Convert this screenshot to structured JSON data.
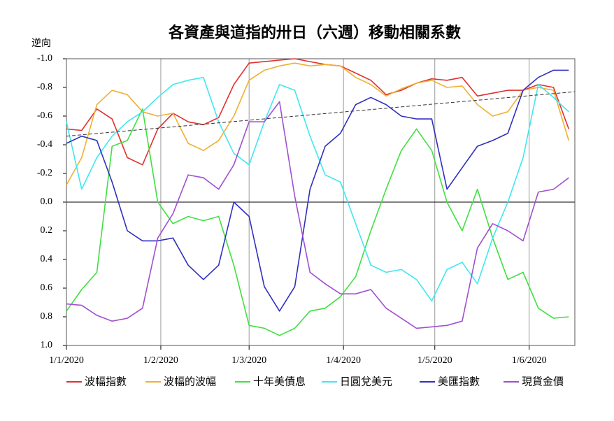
{
  "chart_data": {
    "type": "line",
    "title": "各資產與道指的卅日（六週）移動相關系數",
    "y_axis_label": "逆向",
    "y_inverted": true,
    "x": [
      "2020-01-01",
      "2020-01-06",
      "2020-01-11",
      "2020-01-16",
      "2020-01-21",
      "2020-01-26",
      "2020-01-31",
      "2020-02-05",
      "2020-02-10",
      "2020-02-15",
      "2020-02-20",
      "2020-02-25",
      "2020-03-01",
      "2020-03-06",
      "2020-03-11",
      "2020-03-16",
      "2020-03-21",
      "2020-03-26",
      "2020-03-31",
      "2020-04-05",
      "2020-04-10",
      "2020-04-15",
      "2020-04-20",
      "2020-04-25",
      "2020-04-30",
      "2020-05-05",
      "2020-05-10",
      "2020-05-15",
      "2020-05-20",
      "2020-05-25",
      "2020-05-30",
      "2020-06-04",
      "2020-06-09",
      "2020-06-14"
    ],
    "series": [
      {
        "name": "波幅指數",
        "color": "#e03030",
        "values": [
          -0.51,
          -0.5,
          -0.65,
          -0.58,
          -0.31,
          -0.26,
          -0.51,
          -0.62,
          -0.56,
          -0.54,
          -0.59,
          -0.82,
          -0.97,
          -0.98,
          -0.99,
          -1.0,
          -0.98,
          -0.96,
          -0.95,
          -0.9,
          -0.85,
          -0.75,
          -0.78,
          -0.83,
          -0.86,
          -0.85,
          -0.87,
          -0.74,
          -0.76,
          -0.78,
          -0.78,
          -0.82,
          -0.8,
          -0.51
        ]
      },
      {
        "name": "波幅的波幅",
        "color": "#f0b030",
        "values": [
          -0.12,
          -0.31,
          -0.68,
          -0.78,
          -0.75,
          -0.63,
          -0.6,
          -0.62,
          -0.41,
          -0.36,
          -0.43,
          -0.6,
          -0.85,
          -0.92,
          -0.95,
          -0.97,
          -0.95,
          -0.96,
          -0.95,
          -0.87,
          -0.82,
          -0.74,
          -0.79,
          -0.83,
          -0.85,
          -0.8,
          -0.81,
          -0.68,
          -0.6,
          -0.63,
          -0.78,
          -0.8,
          -0.78,
          -0.43
        ]
      },
      {
        "name": "十年美債息",
        "color": "#40e040",
        "values": [
          0.76,
          0.61,
          0.49,
          -0.39,
          -0.43,
          -0.65,
          0.0,
          0.15,
          0.1,
          0.13,
          0.1,
          0.44,
          0.86,
          0.88,
          0.93,
          0.88,
          0.76,
          0.74,
          0.66,
          0.52,
          0.2,
          -0.09,
          -0.36,
          -0.51,
          -0.36,
          0.0,
          0.2,
          -0.09,
          0.25,
          0.54,
          0.49,
          0.74,
          0.81,
          0.8
        ]
      },
      {
        "name": "日圓兌美元",
        "color": "#40e8f0",
        "values": [
          -0.56,
          -0.09,
          -0.31,
          -0.46,
          -0.56,
          -0.63,
          -0.73,
          -0.82,
          -0.85,
          -0.87,
          -0.56,
          -0.34,
          -0.26,
          -0.56,
          -0.82,
          -0.78,
          -0.46,
          -0.19,
          -0.14,
          0.15,
          0.44,
          0.49,
          0.47,
          0.54,
          0.69,
          0.47,
          0.42,
          0.57,
          0.25,
          0.0,
          -0.31,
          -0.82,
          -0.73,
          -0.63
        ]
      },
      {
        "name": "美匯指數",
        "color": "#3030c0",
        "values": [
          -0.41,
          -0.46,
          -0.43,
          -0.14,
          0.2,
          0.27,
          0.27,
          0.25,
          0.44,
          0.54,
          0.44,
          0.0,
          0.1,
          0.59,
          0.76,
          0.59,
          -0.09,
          -0.39,
          -0.48,
          -0.68,
          -0.73,
          -0.68,
          -0.6,
          -0.58,
          -0.58,
          -0.09,
          -0.24,
          -0.39,
          -0.43,
          -0.48,
          -0.78,
          -0.87,
          -0.92,
          -0.92
        ]
      },
      {
        "name": "現貨金價",
        "color": "#a050d0",
        "values": [
          0.71,
          0.72,
          0.79,
          0.83,
          0.81,
          0.74,
          0.25,
          0.08,
          -0.19,
          -0.17,
          -0.09,
          -0.26,
          -0.56,
          -0.56,
          -0.7,
          -0.04,
          0.49,
          0.57,
          0.64,
          0.64,
          0.61,
          0.74,
          0.81,
          0.88,
          0.87,
          0.86,
          0.83,
          0.32,
          0.15,
          0.2,
          0.27,
          -0.07,
          -0.09,
          -0.17
        ]
      }
    ],
    "trend": {
      "x": [
        "2020-01-01",
        "2020-06-16"
      ],
      "values": [
        -0.46,
        -0.77
      ]
    },
    "xlim": [
      "2020-01-01",
      "2020-06-16"
    ],
    "xticks": [
      {
        "value": "2020-01-01",
        "label": "1/1/2020"
      },
      {
        "value": "2020-02-01",
        "label": "1/2/2020"
      },
      {
        "value": "2020-03-01",
        "label": "1/3/2020"
      },
      {
        "value": "2020-04-01",
        "label": "1/4/2020"
      },
      {
        "value": "2020-05-01",
        "label": "1/5/2020"
      },
      {
        "value": "2020-06-01",
        "label": "1/6/2020"
      }
    ],
    "ylim": [
      -1,
      1
    ],
    "yticks": [
      {
        "value": -1,
        "label": "-1.0"
      },
      -0.8,
      -0.6,
      -0.4,
      -0.2,
      {
        "value": 0,
        "label": "0.0"
      },
      0.2,
      0.4,
      0.6,
      0.8,
      {
        "value": 1,
        "label": "1.0"
      }
    ],
    "grid": true,
    "legend": "bottom"
  }
}
